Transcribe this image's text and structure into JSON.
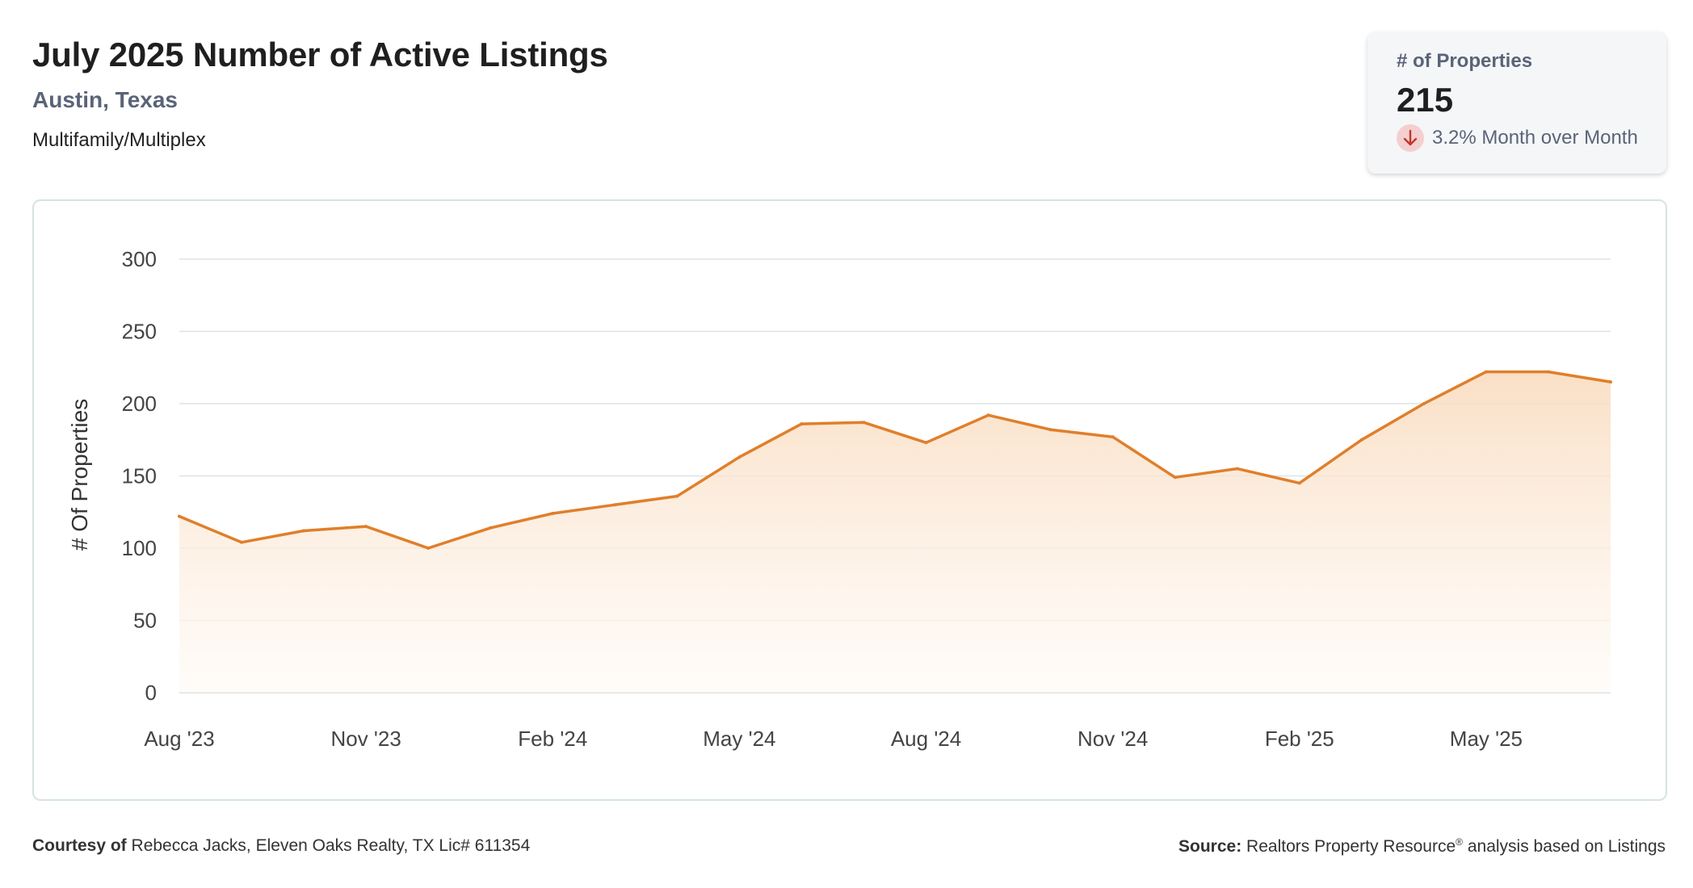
{
  "header": {
    "title": "July 2025 Number of Active Listings",
    "location": "Austin, Texas",
    "property_type": "Multifamily/Multiplex"
  },
  "kpi": {
    "label": "# of Properties",
    "value": "215",
    "change_text": "3.2% Month over Month",
    "direction_icon": "arrow-down-icon",
    "direction_color": "#c0392b"
  },
  "footer": {
    "courtesy_label": "Courtesy of",
    "courtesy_text": "Rebecca Jacks, Eleven Oaks Realty, TX Lic# 611354",
    "source_label": "Source:",
    "source_name": "Realtors Property Resource",
    "source_mark": "®",
    "source_suffix": "analysis based on Listings"
  },
  "colors": {
    "line": "#e07f2b",
    "area_top": "#f9dcc0",
    "area_bottom": "#fffaf5",
    "grid": "#dde3e3"
  },
  "chart_data": {
    "type": "area",
    "title": "",
    "xlabel": "",
    "ylabel": "# Of Properties",
    "ylim": [
      0,
      300
    ],
    "y_ticks": [
      0,
      50,
      100,
      150,
      200,
      250,
      300
    ],
    "x": [
      "2023-08",
      "2023-09",
      "2023-10",
      "2023-11",
      "2023-12",
      "2024-01",
      "2024-02",
      "2024-03",
      "2024-04",
      "2024-05",
      "2024-06",
      "2024-07",
      "2024-08",
      "2024-09",
      "2024-10",
      "2024-11",
      "2024-12",
      "2025-01",
      "2025-02",
      "2025-03",
      "2025-04",
      "2025-05",
      "2025-06",
      "2025-07"
    ],
    "x_tick_labels": [
      {
        "x": "2023-08",
        "label": "Aug '23"
      },
      {
        "x": "2023-11",
        "label": "Nov '23"
      },
      {
        "x": "2024-02",
        "label": "Feb '24"
      },
      {
        "x": "2024-05",
        "label": "May '24"
      },
      {
        "x": "2024-08",
        "label": "Aug '24"
      },
      {
        "x": "2024-11",
        "label": "Nov '24"
      },
      {
        "x": "2025-02",
        "label": "Feb '25"
      },
      {
        "x": "2025-05",
        "label": "May '25"
      }
    ],
    "series": [
      {
        "values": [
          122,
          104,
          112,
          115,
          100,
          114,
          124,
          130,
          136,
          163,
          186,
          187,
          173,
          192,
          182,
          177,
          149,
          155,
          145,
          175,
          200,
          222,
          222,
          215
        ]
      }
    ],
    "grid": true,
    "legend": "none"
  }
}
